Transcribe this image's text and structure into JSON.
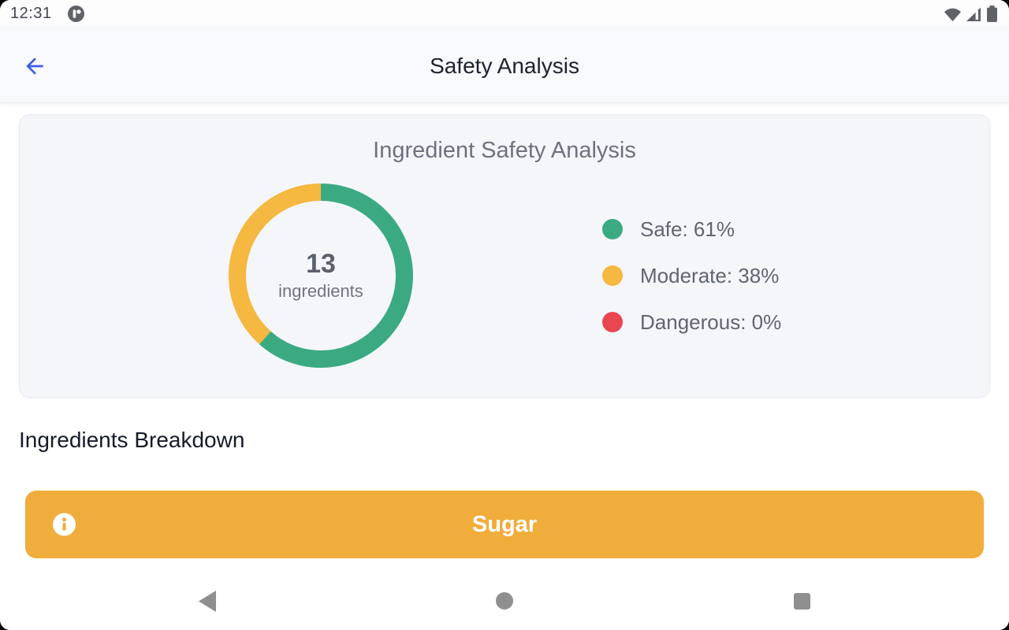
{
  "status_bar": {
    "time": "12:31",
    "icons": [
      "app-notification-icon",
      "wifi-icon",
      "cell-signal-icon",
      "battery-icon"
    ]
  },
  "app_bar": {
    "title": "Safety Analysis"
  },
  "chart_data": {
    "type": "donut",
    "title": "Ingredient Safety Analysis",
    "center_value": "13",
    "center_label": "ingredients",
    "slices": [
      {
        "label": "Safe",
        "pct": 61,
        "color": "#3BAA83"
      },
      {
        "label": "Moderate",
        "pct": 38,
        "color": "#F5B840"
      },
      {
        "label": "Dangerous",
        "pct": 0,
        "color": "#E9464F"
      }
    ],
    "legend_items": [
      {
        "text": "Safe: 61%",
        "color": "#3BAA83"
      },
      {
        "text": "Moderate: 38%",
        "color": "#F5B840"
      },
      {
        "text": "Dangerous: 0%",
        "color": "#E9464F"
      }
    ],
    "legend_position": "right",
    "ring_thickness": 22
  },
  "section": {
    "heading": "Ingredients Breakdown"
  },
  "ingredients": [
    {
      "name": "Sugar",
      "safety_level": "moderate",
      "color": "#F0AD3C"
    }
  ],
  "nav_bar": {
    "icons": [
      "back-nav-icon",
      "home-nav-icon",
      "recents-nav-icon"
    ]
  },
  "colors": {
    "accent_blue": "#3D5AE8",
    "status_icon_gray": "#5F6368",
    "nav_icon_gray": "#8F8F8F"
  }
}
